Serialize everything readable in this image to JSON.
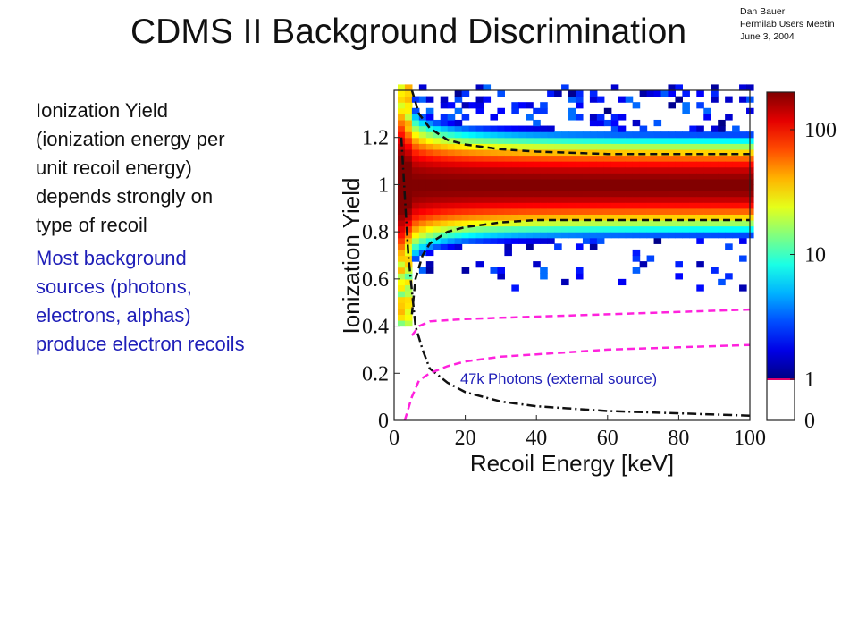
{
  "slide": {
    "title": "CDMS II Background Discrimination",
    "header_lines": [
      "Dan Bauer",
      "Fermilab Users Meetin",
      "June 3, 2004"
    ],
    "paragraph1_lines": [
      "Ionization Yield",
      "(ionization energy per",
      "unit recoil energy)",
      "depends strongly on",
      "type of recoil"
    ],
    "paragraph2_lines": [
      "Most background",
      "sources (photons,",
      "electrons, alphas)",
      "produce electron recoils"
    ],
    "colors": {
      "title": "#111111",
      "text": "#111111",
      "accent_text": "#1f1fb8",
      "cut_lines": "#ff22dd"
    }
  },
  "chart_data": {
    "type": "heatmap",
    "xlabel": "Recoil Energy [keV]",
    "ylabel": "Ionization Yield",
    "xlim": [
      0,
      100
    ],
    "ylim": [
      0,
      1.4
    ],
    "x_ticks": [
      0,
      20,
      40,
      60,
      80,
      100
    ],
    "y_ticks": [
      0,
      0.2,
      0.4,
      0.6,
      0.8,
      1,
      1.2
    ],
    "x_tick_labels": [
      "0",
      "20",
      "40",
      "60",
      "80",
      "100"
    ],
    "y_tick_labels": [
      "0",
      "0.2",
      "0.4",
      "0.6",
      "0.8",
      "1",
      "1.2"
    ],
    "annotation": "47k Photons (external source)",
    "colorbar": {
      "scale": "log",
      "ticks": [
        0,
        1,
        10,
        100
      ],
      "tick_labels": [
        "0",
        "1",
        "10",
        "100"
      ]
    },
    "electron_recoil_band": {
      "center_yield": 1.0,
      "sigma": 0.07,
      "peak_counts": 200
    },
    "curves": [
      {
        "style": "black-dashed",
        "description_units": "yield vs keV",
        "x": [
          5,
          7,
          10,
          15,
          20,
          30,
          40,
          60,
          80,
          100
        ],
        "y": [
          1.4,
          1.3,
          1.24,
          1.19,
          1.17,
          1.15,
          1.14,
          1.13,
          1.13,
          1.13
        ]
      },
      {
        "style": "black-dashed",
        "x": [
          5,
          6,
          8,
          10,
          15,
          20,
          30,
          40,
          60,
          80,
          100
        ],
        "y": [
          0.45,
          0.6,
          0.7,
          0.75,
          0.8,
          0.82,
          0.84,
          0.85,
          0.85,
          0.85,
          0.85
        ]
      },
      {
        "style": "black-dash-dot",
        "x": [
          2,
          4,
          6,
          8,
          10,
          15,
          20,
          30,
          40,
          60,
          80,
          100
        ],
        "y": [
          1.2,
          0.7,
          0.4,
          0.3,
          0.22,
          0.16,
          0.12,
          0.08,
          0.06,
          0.04,
          0.03,
          0.02
        ]
      },
      {
        "style": "magenta-dashed",
        "x": [
          5,
          7,
          10,
          15,
          20,
          30,
          40,
          60,
          80,
          100
        ],
        "y": [
          0.36,
          0.4,
          0.42,
          0.425,
          0.43,
          0.435,
          0.44,
          0.45,
          0.46,
          0.47
        ]
      },
      {
        "style": "magenta-dashed",
        "x": [
          3,
          5,
          7,
          10,
          15,
          20,
          30,
          40,
          60,
          80,
          100
        ],
        "y": [
          0,
          0.1,
          0.17,
          0.2,
          0.23,
          0.25,
          0.27,
          0.28,
          0.3,
          0.31,
          0.32
        ]
      }
    ]
  }
}
